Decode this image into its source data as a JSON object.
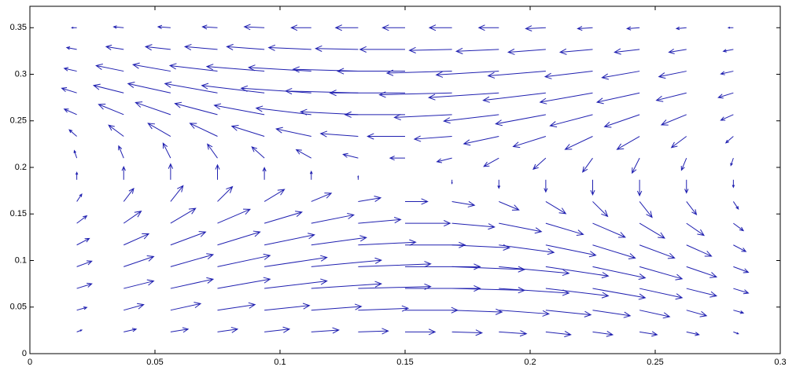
{
  "chart_data": {
    "type": "quiver",
    "color": "#2020b0",
    "xlim": [
      0,
      0.3
    ],
    "xticks": [
      0,
      0.05,
      0.1,
      0.15,
      0.2,
      0.25,
      0.3
    ],
    "ylim": [
      0,
      0.373
    ],
    "yticks": [
      0,
      0.05,
      0.1,
      0.15,
      0.2,
      0.25,
      0.3,
      0.35
    ],
    "x": [
      0.01875,
      0.0375,
      0.05625,
      0.075,
      0.09375,
      0.1125,
      0.13125,
      0.15,
      0.16875,
      0.1875,
      0.20625,
      0.225,
      0.24375,
      0.2625,
      0.28125
    ],
    "y": [
      0.02333,
      0.04667,
      0.07,
      0.09333,
      0.11667,
      0.14,
      0.16333,
      0.18667,
      0.21,
      0.23333,
      0.25667,
      0.28,
      0.30333,
      0.32667,
      0.35
    ],
    "u": [
      [
        0.002,
        0.005,
        0.007,
        0.008,
        0.01,
        0.011,
        0.012,
        0.012,
        0.012,
        0.011,
        0.01,
        0.008,
        0.007,
        0.005,
        0.002
      ],
      [
        0.004,
        0.008,
        0.012,
        0.015,
        0.018,
        0.02,
        0.02,
        0.021,
        0.02,
        0.02,
        0.018,
        0.015,
        0.012,
        0.008,
        0.004
      ],
      [
        0.006,
        0.012,
        0.017,
        0.021,
        0.025,
        0.028,
        0.029,
        0.03,
        0.029,
        0.028,
        0.025,
        0.021,
        0.017,
        0.012,
        0.006
      ],
      [
        0.006,
        0.012,
        0.017,
        0.021,
        0.025,
        0.028,
        0.029,
        0.03,
        0.029,
        0.028,
        0.025,
        0.021,
        0.017,
        0.012,
        0.006
      ],
      [
        0.005,
        0.01,
        0.014,
        0.017,
        0.02,
        0.022,
        0.023,
        0.024,
        0.023,
        0.022,
        0.02,
        0.017,
        0.014,
        0.01,
        0.005
      ],
      [
        0.004,
        0.007,
        0.01,
        0.013,
        0.015,
        0.017,
        0.017,
        0.018,
        0.017,
        0.017,
        0.015,
        0.013,
        0.01,
        0.007,
        0.004
      ],
      [
        0.002,
        0.004,
        0.005,
        0.006,
        0.008,
        0.008,
        0.009,
        0.009,
        0.009,
        0.008,
        0.008,
        0.006,
        0.005,
        0.004,
        0.002
      ],
      [
        0,
        0,
        0,
        0,
        0,
        0,
        0,
        0,
        0,
        0,
        0,
        0,
        0,
        0,
        0
      ],
      [
        -0.001,
        -0.002,
        -0.003,
        -0.004,
        -0.005,
        -0.006,
        -0.006,
        -0.006,
        -0.006,
        -0.006,
        -0.005,
        -0.004,
        -0.003,
        -0.002,
        -0.001
      ],
      [
        -0.003,
        -0.006,
        -0.009,
        -0.011,
        -0.013,
        -0.014,
        -0.015,
        -0.015,
        -0.015,
        -0.014,
        -0.013,
        -0.011,
        -0.009,
        -0.006,
        -0.003
      ],
      [
        -0.005,
        -0.01,
        -0.014,
        -0.017,
        -0.02,
        -0.022,
        -0.023,
        -0.024,
        -0.023,
        -0.022,
        -0.02,
        -0.017,
        -0.014,
        -0.01,
        -0.005
      ],
      [
        -0.006,
        -0.012,
        -0.017,
        -0.021,
        -0.025,
        -0.028,
        -0.029,
        -0.03,
        -0.029,
        -0.028,
        -0.025,
        -0.021,
        -0.017,
        -0.012,
        -0.006
      ],
      [
        -0.005,
        -0.011,
        -0.015,
        -0.019,
        -0.023,
        -0.025,
        -0.026,
        -0.027,
        -0.026,
        -0.025,
        -0.023,
        -0.019,
        -0.015,
        -0.011,
        -0.005
      ],
      [
        -0.004,
        -0.007,
        -0.01,
        -0.013,
        -0.015,
        -0.017,
        -0.017,
        -0.018,
        -0.017,
        -0.017,
        -0.015,
        -0.013,
        -0.01,
        -0.007,
        -0.004
      ],
      [
        -0.002,
        -0.004,
        -0.005,
        -0.006,
        -0.008,
        -0.008,
        -0.009,
        -0.009,
        -0.009,
        -0.008,
        -0.008,
        -0.006,
        -0.005,
        -0.004,
        -0.002
      ]
    ],
    "v": [
      [
        0.002,
        0.003,
        0.003,
        0.003,
        0.003,
        0.002,
        0.001,
        0,
        -0.001,
        -0.002,
        -0.003,
        -0.003,
        -0.003,
        -0.003,
        -0.002
      ],
      [
        0.003,
        0.006,
        0.007,
        0.006,
        0.005,
        0.004,
        0.002,
        0,
        -0.002,
        -0.004,
        -0.005,
        -0.006,
        -0.007,
        -0.006,
        -0.003
      ],
      [
        0.005,
        0.008,
        0.01,
        0.01,
        0.008,
        0.005,
        0.002,
        0,
        -0.002,
        -0.005,
        -0.008,
        -0.01,
        -0.01,
        -0.008,
        -0.005
      ],
      [
        0.006,
        0.011,
        0.013,
        0.012,
        0.01,
        0.007,
        0.003,
        0,
        -0.003,
        -0.007,
        -0.01,
        -0.012,
        -0.013,
        -0.011,
        -0.006
      ],
      [
        0.007,
        0.012,
        0.014,
        0.014,
        0.011,
        0.008,
        0.003,
        0,
        -0.003,
        -0.008,
        -0.011,
        -0.014,
        -0.014,
        -0.012,
        -0.007
      ],
      [
        0.008,
        0.013,
        0.016,
        0.015,
        0.012,
        0.009,
        0.004,
        0,
        -0.004,
        -0.009,
        -0.012,
        -0.015,
        -0.016,
        -0.013,
        -0.008
      ],
      [
        0.008,
        0.014,
        0.017,
        0.016,
        0.013,
        0.009,
        0.004,
        0,
        -0.004,
        -0.009,
        -0.013,
        -0.016,
        -0.017,
        -0.014,
        -0.008
      ],
      [
        0.008,
        0.014,
        0.017,
        0.016,
        0.013,
        0.009,
        0.004,
        0,
        -0.004,
        -0.009,
        -0.013,
        -0.016,
        -0.017,
        -0.014,
        -0.008
      ],
      [
        0.008,
        0.013,
        0.016,
        0.015,
        0.012,
        0.009,
        0.004,
        0,
        -0.004,
        -0.009,
        -0.012,
        -0.015,
        -0.016,
        -0.013,
        -0.008
      ],
      [
        0.007,
        0.012,
        0.014,
        0.014,
        0.011,
        0.008,
        0.003,
        0,
        -0.003,
        -0.008,
        -0.011,
        -0.014,
        -0.014,
        -0.012,
        -0.007
      ],
      [
        0.006,
        0.011,
        0.013,
        0.012,
        0.01,
        0.007,
        0.003,
        0,
        -0.003,
        -0.007,
        -0.01,
        -0.012,
        -0.013,
        -0.011,
        -0.006
      ],
      [
        0.005,
        0.008,
        0.01,
        0.01,
        0.008,
        0.005,
        0.002,
        0,
        -0.002,
        -0.005,
        -0.008,
        -0.01,
        -0.01,
        -0.008,
        -0.005
      ],
      [
        0.003,
        0.006,
        0.007,
        0.006,
        0.005,
        0.004,
        0.002,
        0,
        -0.002,
        -0.004,
        -0.005,
        -0.006,
        -0.007,
        -0.006,
        -0.003
      ],
      [
        0.002,
        0.003,
        0.003,
        0.003,
        0.003,
        0.002,
        0.001,
        0,
        -0.001,
        -0.002,
        -0.003,
        -0.003,
        -0.003,
        -0.003,
        -0.002
      ],
      [
        0,
        0.001,
        0.001,
        0.001,
        0.001,
        0,
        0,
        0,
        0,
        0,
        -0.001,
        -0.001,
        -0.001,
        -0.001,
        0
      ]
    ]
  }
}
